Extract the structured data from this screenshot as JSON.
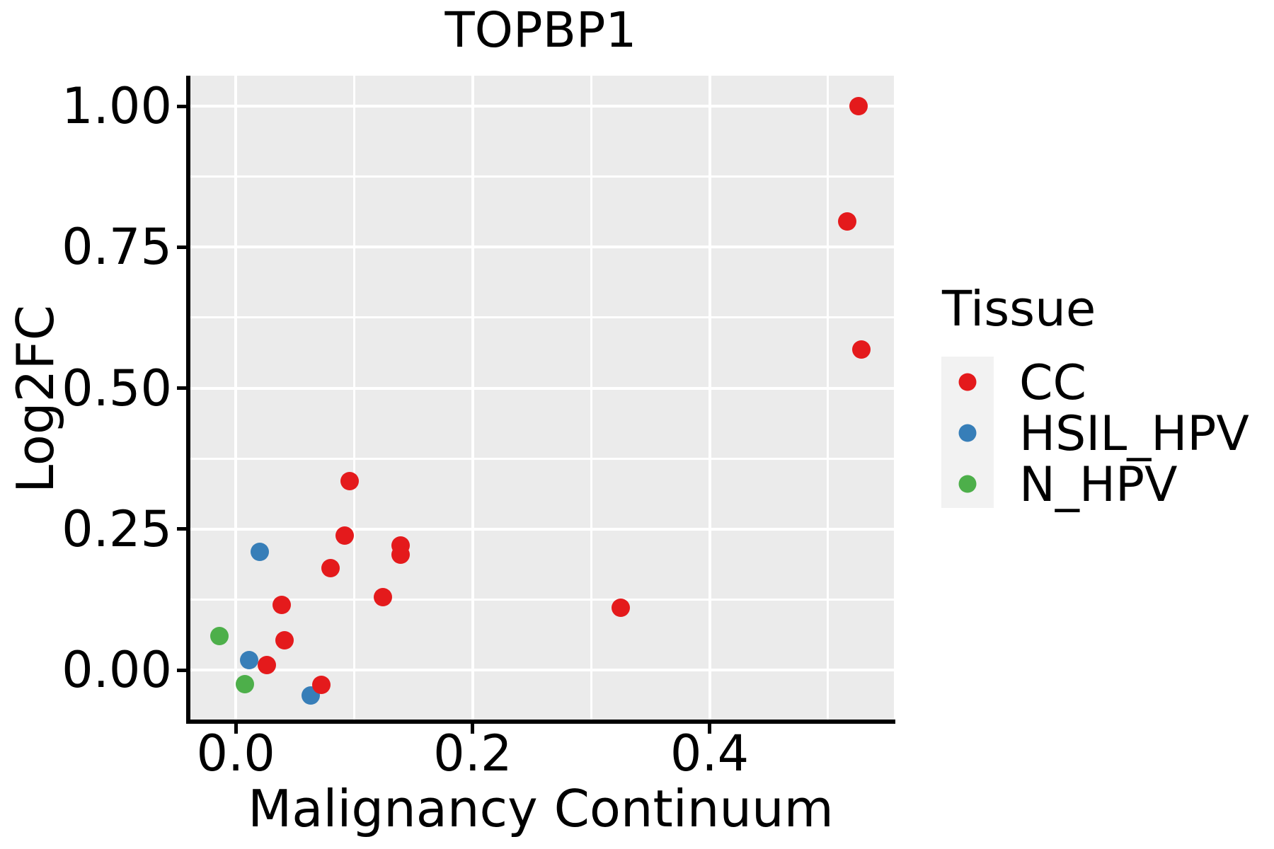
{
  "title": "TOPBP1",
  "axes": {
    "x": {
      "label": "Malignancy Continuum",
      "major_ticks": [
        0.0,
        0.2,
        0.4
      ],
      "tick_labels": [
        "0.0",
        "0.2",
        "0.4"
      ],
      "minor_ticks": [
        0.1,
        0.3,
        0.5
      ],
      "range": [
        -0.0395,
        0.5556
      ]
    },
    "y": {
      "label": "Log2FC",
      "major_ticks": [
        0.0,
        0.25,
        0.5,
        0.75,
        1.0
      ],
      "tick_labels": [
        "0.00",
        "0.25",
        "0.50",
        "0.75",
        "1.00"
      ],
      "minor_ticks": [
        0.125,
        0.375,
        0.625,
        0.875
      ],
      "range": [
        -0.089,
        1.054
      ]
    }
  },
  "legend": {
    "title": "Tissue",
    "position": "right",
    "entries": [
      {
        "label": "CC",
        "color": "#E41A1C"
      },
      {
        "label": "HSIL_HPV",
        "color": "#377EB8"
      },
      {
        "label": "N_HPV",
        "color": "#4DAF4A"
      }
    ]
  },
  "style": {
    "panel_background": "#EBEBEB",
    "gridline_color": "#FFFFFF",
    "legend_key_background": "#F2F2F2",
    "axis_color": "#000000"
  },
  "chart_data": {
    "type": "scatter",
    "title": "TOPBP1",
    "xlabel": "Malignancy Continuum",
    "ylabel": "Log2FC",
    "xlim": [
      -0.0395,
      0.5556
    ],
    "ylim": [
      -0.089,
      1.054
    ],
    "grid": "major+minor",
    "legend_position": "right",
    "series": [
      {
        "name": "CC",
        "color": "#E41A1C",
        "points": [
          [
            0.526,
            1.0
          ],
          [
            0.516,
            0.795
          ],
          [
            0.528,
            0.568
          ],
          [
            0.096,
            0.335
          ],
          [
            0.092,
            0.238
          ],
          [
            0.139,
            0.221
          ],
          [
            0.139,
            0.205
          ],
          [
            0.08,
            0.181
          ],
          [
            0.124,
            0.129
          ],
          [
            0.039,
            0.115
          ],
          [
            0.325,
            0.11
          ],
          [
            0.041,
            0.053
          ],
          [
            0.026,
            0.009
          ],
          [
            0.072,
            -0.026
          ]
        ]
      },
      {
        "name": "HSIL_HPV",
        "color": "#377EB8",
        "points": [
          [
            0.02,
            0.21
          ],
          [
            0.011,
            0.018
          ],
          [
            0.063,
            -0.045
          ]
        ]
      },
      {
        "name": "N_HPV",
        "color": "#4DAF4A",
        "points": [
          [
            -0.014,
            0.06
          ],
          [
            0.008,
            -0.025
          ]
        ]
      }
    ]
  }
}
